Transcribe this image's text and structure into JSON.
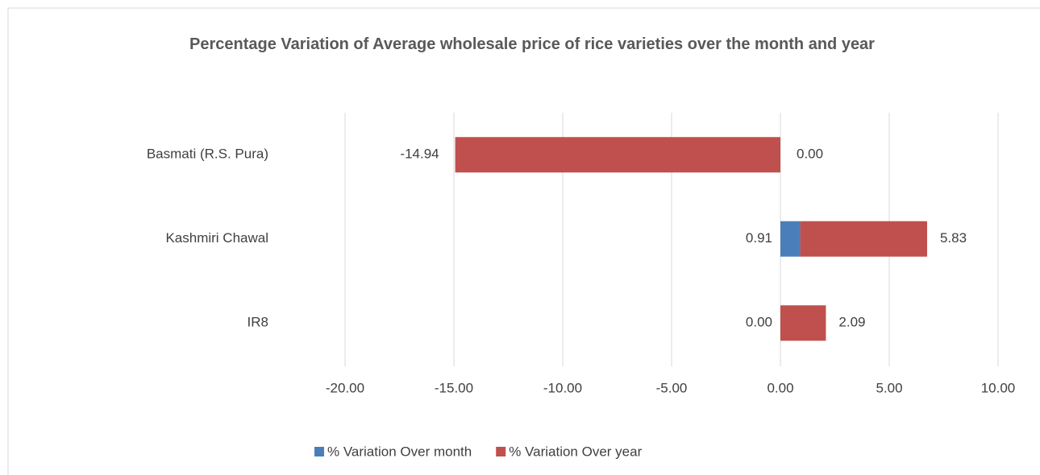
{
  "chart_data": {
    "type": "stacked-bar-horizontal",
    "title": "Percentage Variation of Average wholesale price of rice varieties over the month and year",
    "categories": [
      "Basmati (R.S. Pura)",
      "Kashmiri Chawal",
      "IR8"
    ],
    "series": [
      {
        "name": "% Variation Over month",
        "color": "#4a7ebb",
        "values": [
          0.0,
          0.91,
          0.0
        ],
        "value_labels": [
          "0.00",
          "0.91",
          "0.00"
        ]
      },
      {
        "name": "% Variation Over year",
        "color": "#c0504d",
        "values": [
          -14.94,
          5.83,
          2.09
        ],
        "value_labels": [
          "-14.94",
          "5.83",
          "2.09"
        ]
      }
    ],
    "xlim": [
      -20,
      10
    ],
    "xticks": [
      {
        "value": -20,
        "label": "-20.00"
      },
      {
        "value": -15,
        "label": "-15.00"
      },
      {
        "value": -10,
        "label": "-10.00"
      },
      {
        "value": -5,
        "label": "-5.00"
      },
      {
        "value": 0,
        "label": "0.00"
      },
      {
        "value": 5,
        "label": "5.00"
      },
      {
        "value": 10,
        "label": "10.00"
      }
    ],
    "grid": true,
    "legend": "bottom"
  }
}
